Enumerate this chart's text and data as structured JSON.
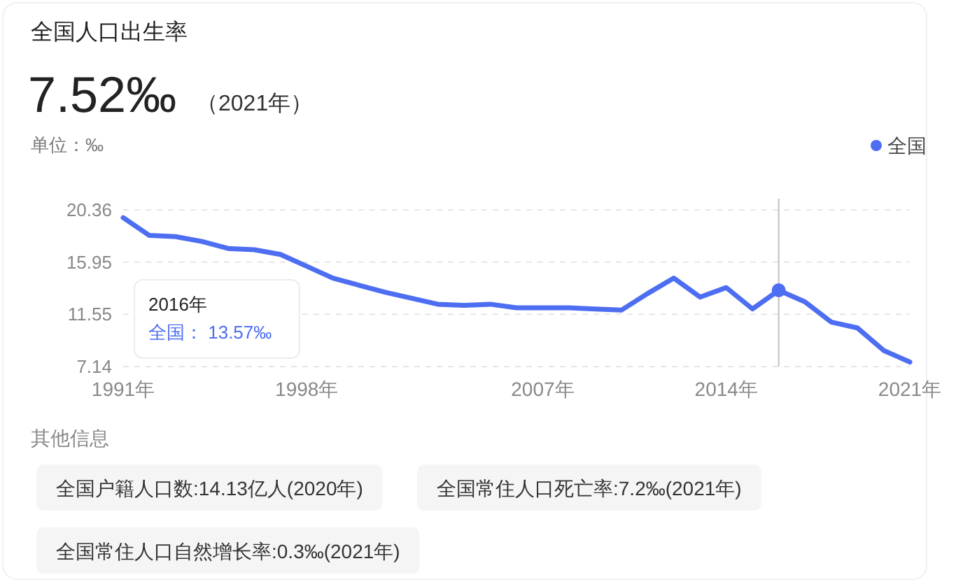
{
  "chart_data": {
    "type": "line",
    "title": "全国人口出生率",
    "ylabel": "单位：‰",
    "annotations": [
      "7.52‰",
      "（2021年）",
      "其他信息",
      "全国户籍人口数:14.13亿人(2020年)",
      "全国常住人口死亡率:7.2‰(2021年)",
      "全国常住人口自然增长率:0.3‰(2021年)",
      "2016年",
      "全国：  13.57‰"
    ],
    "x": [
      1991,
      1992,
      1993,
      1994,
      1995,
      1996,
      1997,
      1998,
      1999,
      2000,
      2001,
      2002,
      2003,
      2004,
      2005,
      2006,
      2007,
      2008,
      2009,
      2010,
      2011,
      2012,
      2013,
      2014,
      2015,
      2016,
      2017,
      2018,
      2019,
      2020,
      2021
    ],
    "series": [
      {
        "name": "全国",
        "color": "#4e6ef2",
        "values": [
          19.7,
          18.2,
          18.1,
          17.7,
          17.1,
          17.0,
          16.6,
          15.6,
          14.6,
          14.0,
          13.4,
          12.9,
          12.4,
          12.3,
          12.4,
          12.1,
          12.1,
          12.1,
          12.0,
          11.9,
          13.3,
          14.6,
          13.0,
          13.8,
          12.0,
          13.57,
          12.6,
          10.9,
          10.4,
          8.5,
          7.52
        ]
      }
    ],
    "xlim": [
      1991,
      2021
    ],
    "xticks": [
      {
        "value": 1991,
        "label": "1991年"
      },
      {
        "value": 1998,
        "label": "1998年"
      },
      {
        "value": 2007,
        "label": "2007年"
      },
      {
        "value": 2014,
        "label": "2014年"
      },
      {
        "value": 2021,
        "label": "2021年"
      }
    ],
    "ylim": [
      7.14,
      20.36
    ],
    "yticks": [
      7.14,
      11.55,
      15.95,
      20.36
    ],
    "grid": "y",
    "legend": "top right",
    "marker": "none",
    "line_style": "solid",
    "ref_lines": [
      {
        "axis": "x",
        "value": 2016,
        "color": "#c0c0c0",
        "line_style": "solid"
      }
    ]
  }
}
